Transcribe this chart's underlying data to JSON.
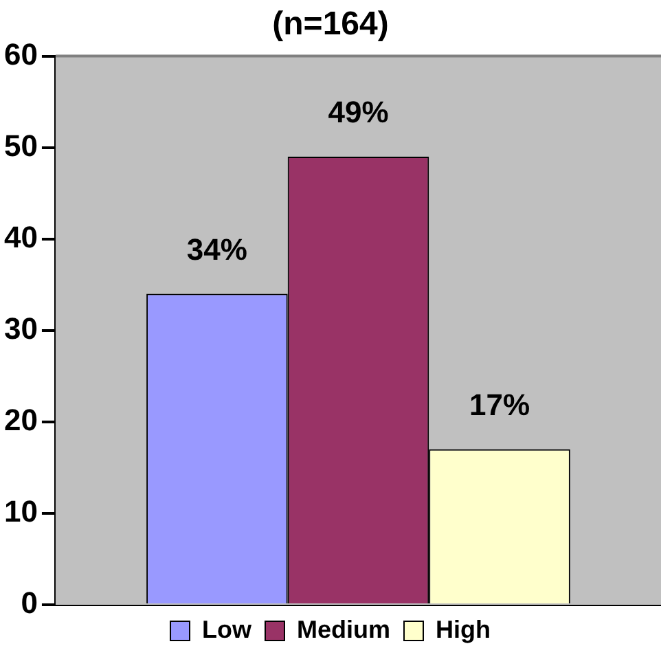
{
  "chart_data": {
    "type": "bar",
    "title": "(n=164)",
    "categories": [
      null
    ],
    "series": [
      {
        "name": "Low",
        "color": "#9999ff",
        "values": [
          34
        ],
        "value_labels": [
          "34%"
        ]
      },
      {
        "name": "Medium",
        "color": "#993366",
        "values": [
          49
        ],
        "value_labels": [
          "49%"
        ]
      },
      {
        "name": "High",
        "color": "#ffffcc",
        "values": [
          17
        ],
        "value_labels": [
          "17%"
        ]
      }
    ],
    "ylim": [
      0,
      60
    ],
    "yticks": [
      0,
      10,
      20,
      30,
      40,
      50,
      60
    ],
    "legend": "bottom"
  }
}
